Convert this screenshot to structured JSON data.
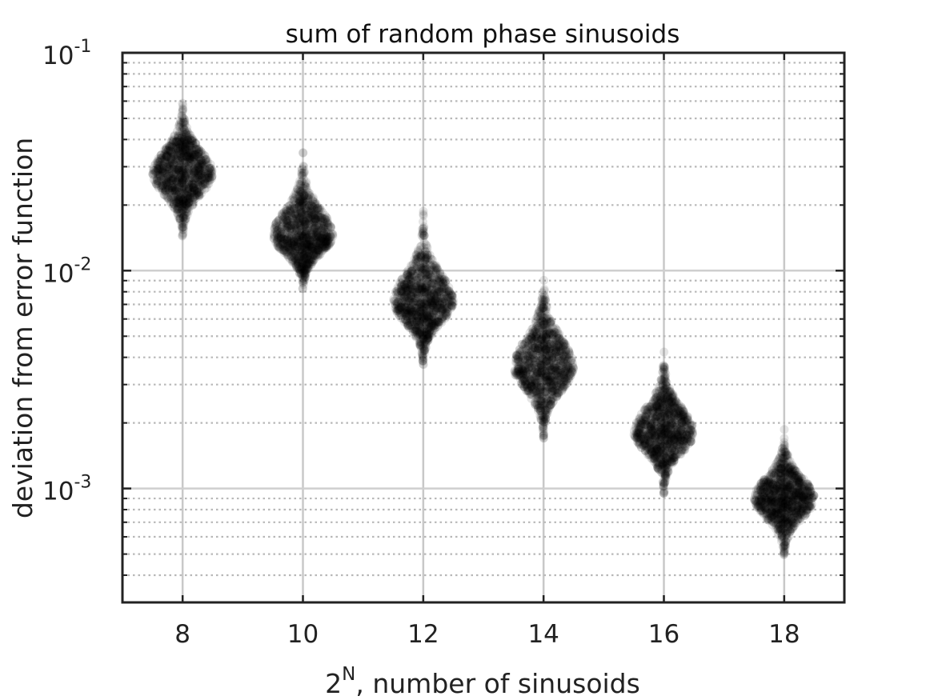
{
  "chart_data": {
    "type": "scatter",
    "title": "sum of random phase sinusoids",
    "xlabel": "number of sinusoids",
    "xlabel_base": "2",
    "xlabel_sup": "N",
    "xlabel_suffix": ", number of sinusoids",
    "ylabel": "deviation from error function",
    "y_scale": "log",
    "xlim": [
      7,
      19
    ],
    "ylim": [
      0.0003,
      0.1
    ],
    "grid": true,
    "x_ticks": [
      8,
      10,
      12,
      14,
      16,
      18
    ],
    "x_tick_labels": [
      "8",
      "10",
      "12",
      "14",
      "16",
      "18"
    ],
    "y_ticks": [
      {
        "value": 0.001,
        "base": "10",
        "exp": "-3"
      },
      {
        "value": 0.01,
        "base": "10",
        "exp": "-2"
      },
      {
        "value": 0.1,
        "base": "10",
        "exp": "-1"
      }
    ],
    "point_color": "#000000",
    "point_opacity": 0.1,
    "distributions": [
      {
        "x": 8,
        "center": 0.028,
        "min": 0.014,
        "max": 0.063,
        "halfwidth": 0.5
      },
      {
        "x": 10,
        "center": 0.0145,
        "min": 0.0081,
        "max": 0.036,
        "halfwidth": 0.5
      },
      {
        "x": 12,
        "center": 0.0072,
        "min": 0.0037,
        "max": 0.019,
        "halfwidth": 0.5
      },
      {
        "x": 14,
        "center": 0.0036,
        "min": 0.0017,
        "max": 0.01,
        "halfwidth": 0.5
      },
      {
        "x": 16,
        "center": 0.0018,
        "min": 0.00095,
        "max": 0.0043,
        "halfwidth": 0.5
      },
      {
        "x": 18,
        "center": 0.0009,
        "min": 0.00048,
        "max": 0.0019,
        "halfwidth": 0.5
      }
    ]
  }
}
